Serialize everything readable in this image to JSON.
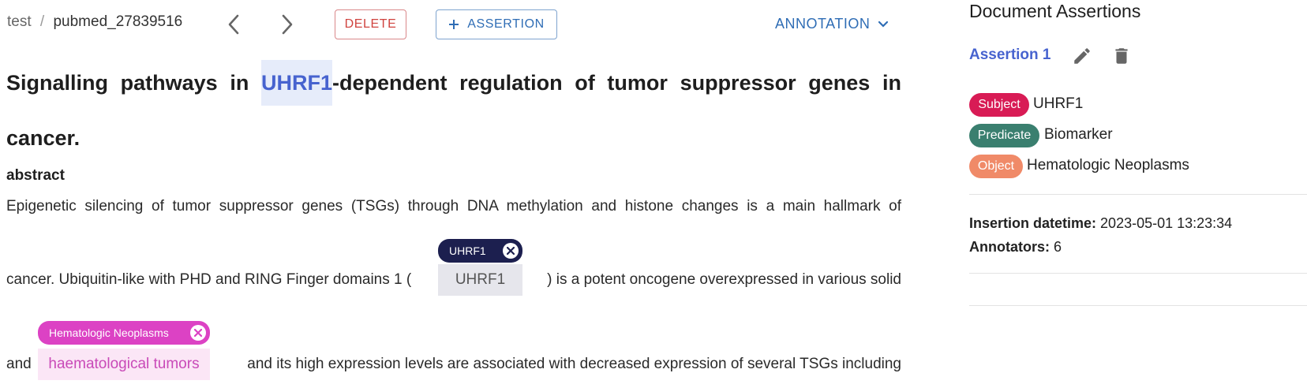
{
  "breadcrumb": {
    "project": "test",
    "separator": "/",
    "document": "pubmed_27839516"
  },
  "toolbar": {
    "delete_label": "DELETE",
    "assertion_label": "ASSERTION",
    "annotation_label": "ANNOTATION"
  },
  "document": {
    "title_before": "Signalling pathways in ",
    "title_entity": "UHRF1",
    "title_after": "-dependent regulation of tumor suppressor genes in",
    "title_line2": "cancer.",
    "section": "abstract",
    "line1": "Epigenetic silencing of tumor suppressor genes (TSGs) through DNA methylation and histone changes is a main hallmark of",
    "line2_before": "cancer. Ubiquitin-like with PHD and RING Finger domains 1 (",
    "line2_entity": "UHRF1",
    "line2_after": ") is a potent oncogene overexpressed in various solid",
    "line3_before": "and",
    "line3_entity": "haematological tumors",
    "line3_after": "and its high expression levels are associated with decreased expression of several TSGs including"
  },
  "annotations": {
    "chip1": {
      "label": "UHRF1",
      "color": "#1c1f4f"
    },
    "chip2": {
      "label": "Hematologic Neoplasms",
      "color": "#dc42c4"
    }
  },
  "sidebar": {
    "title": "Document Assertions",
    "assertion_link": "Assertion 1",
    "subject_tag": "Subject",
    "subject_value": "UHRF1",
    "predicate_tag": "Predicate",
    "predicate_value": "Biomarker",
    "object_tag": "Object",
    "object_value": "Hematologic Neoplasms",
    "insertion_label": "Insertion datetime:",
    "insertion_value": "2023-05-01 13:23:34",
    "annotators_label": "Annotators:",
    "annotators_value": "6"
  },
  "colors": {
    "subject": "#d81b55",
    "predicate": "#3a7f6f",
    "object": "#f08a68",
    "accent_blue": "#4763cf",
    "delete_red": "#d0433f"
  },
  "icons": [
    "chevron-left-icon",
    "chevron-right-icon",
    "plus-icon",
    "chevron-down-icon",
    "close-circle-icon",
    "pencil-icon",
    "trash-icon"
  ]
}
